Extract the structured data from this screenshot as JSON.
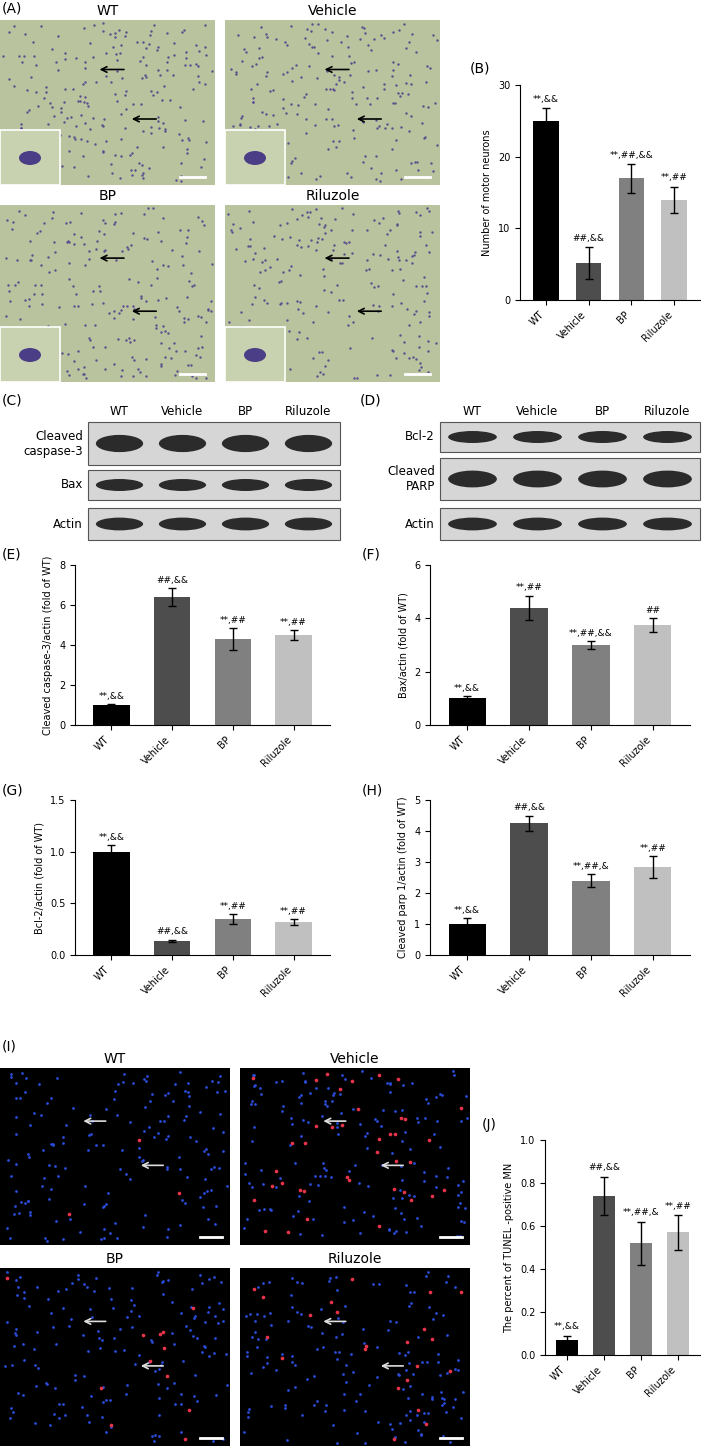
{
  "panels": {
    "A": {
      "label": "(A)",
      "images": [
        "WT",
        "Vehicle",
        "BP",
        "Riluzole"
      ]
    },
    "C": {
      "label": "(C)",
      "lanes": [
        "WT",
        "Vehicle",
        "BP",
        "Riluzole"
      ],
      "rows": [
        "Cleaved\ncaspase-3",
        "Bax",
        "Actin"
      ]
    },
    "D": {
      "label": "(D)",
      "lanes": [
        "WT",
        "Vehicle",
        "BP",
        "Riluzole"
      ],
      "rows": [
        "Bcl-2",
        "Cleaved\nPARP",
        "Actin"
      ]
    },
    "I": {
      "label": "(I)",
      "images": [
        "WT",
        "Vehicle",
        "BP",
        "Riluzole"
      ]
    }
  },
  "chart_data": [
    {
      "label": "(B)",
      "type": "bar",
      "ylabel": "Number of motor neurons",
      "categories": [
        "WT",
        "Vehicle",
        "BP",
        "Riluzole"
      ],
      "values": [
        25,
        5.2,
        17,
        14
      ],
      "errors": [
        1.8,
        2.2,
        2.0,
        1.8
      ],
      "annotations": [
        "**,&&",
        "##,&&",
        "**,##,&&",
        "**,##"
      ],
      "colors": [
        "#000000",
        "#4d4d4d",
        "#808080",
        "#c0c0c0"
      ],
      "ylim": [
        0,
        30
      ],
      "yticks": [
        0,
        10,
        20,
        30
      ]
    },
    {
      "label": "(E)",
      "type": "bar",
      "ylabel": "Cleaved caspase-3/actin (fold of WT)",
      "categories": [
        "WT",
        "Vehicle",
        "BP",
        "Riluzole"
      ],
      "values": [
        1.0,
        6.4,
        4.3,
        4.5
      ],
      "errors": [
        0.05,
        0.45,
        0.55,
        0.25
      ],
      "annotations": [
        "**,&&",
        "##,&&",
        "**,##",
        "**,##"
      ],
      "colors": [
        "#000000",
        "#4d4d4d",
        "#808080",
        "#c0c0c0"
      ],
      "ylim": [
        0,
        8
      ],
      "yticks": [
        0,
        2,
        4,
        6,
        8
      ]
    },
    {
      "label": "(F)",
      "type": "bar",
      "ylabel": "Bax/actin (fold of WT)",
      "categories": [
        "WT",
        "Vehicle",
        "BP",
        "Riluzole"
      ],
      "values": [
        1.0,
        4.4,
        3.0,
        3.75
      ],
      "errors": [
        0.08,
        0.45,
        0.15,
        0.25
      ],
      "annotations": [
        "**,&&",
        "**,##",
        "**,##,&&",
        "##"
      ],
      "colors": [
        "#000000",
        "#4d4d4d",
        "#808080",
        "#c0c0c0"
      ],
      "ylim": [
        0,
        6
      ],
      "yticks": [
        0,
        2,
        4,
        6
      ]
    },
    {
      "label": "(G)",
      "type": "bar",
      "ylabel": "Bcl-2/actin (fold of WT)",
      "categories": [
        "WT",
        "Vehicle",
        "BP",
        "Riluzole"
      ],
      "values": [
        1.0,
        0.14,
        0.35,
        0.32
      ],
      "errors": [
        0.06,
        0.01,
        0.05,
        0.03
      ],
      "annotations": [
        "**,&&",
        "##,&&",
        "**,##",
        "**,##"
      ],
      "colors": [
        "#000000",
        "#4d4d4d",
        "#808080",
        "#c0c0c0"
      ],
      "ylim": [
        0,
        1.5
      ],
      "yticks": [
        {
          "value": 0,
          "label": "0.0"
        },
        0.5,
        {
          "value": 1,
          "label": "1.0"
        },
        1.5
      ]
    },
    {
      "label": "(H)",
      "type": "bar",
      "ylabel": "Cleaved parp 1/actin (fold of WT)",
      "categories": [
        "WT",
        "Vehicle",
        "BP",
        "Riluzole"
      ],
      "values": [
        1.0,
        4.25,
        2.4,
        2.85
      ],
      "errors": [
        0.2,
        0.25,
        0.2,
        0.35
      ],
      "annotations": [
        "**,&&",
        "##,&&",
        "**,##,&",
        "**,##"
      ],
      "colors": [
        "#000000",
        "#4d4d4d",
        "#808080",
        "#c0c0c0"
      ],
      "ylim": [
        0,
        5
      ],
      "yticks": [
        0,
        1,
        2,
        3,
        4,
        5
      ]
    },
    {
      "label": "(J)",
      "type": "bar",
      "ylabel": "The percent of TUNEL -positive MN",
      "categories": [
        "WT",
        "Vehicle",
        "BP",
        "Riluzole"
      ],
      "values": [
        0.07,
        0.74,
        0.52,
        0.57
      ],
      "errors": [
        0.02,
        0.09,
        0.1,
        0.08
      ],
      "annotations": [
        "**,&&",
        "##,&&",
        "**,##,&",
        "**,##"
      ],
      "colors": [
        "#000000",
        "#4d4d4d",
        "#808080",
        "#c0c0c0"
      ],
      "ylim": [
        0,
        1.0
      ],
      "yticks": [
        {
          "value": 0,
          "label": "0.0"
        },
        0.2,
        0.4,
        0.6,
        0.8,
        {
          "value": 1,
          "label": "1.0"
        }
      ]
    }
  ]
}
